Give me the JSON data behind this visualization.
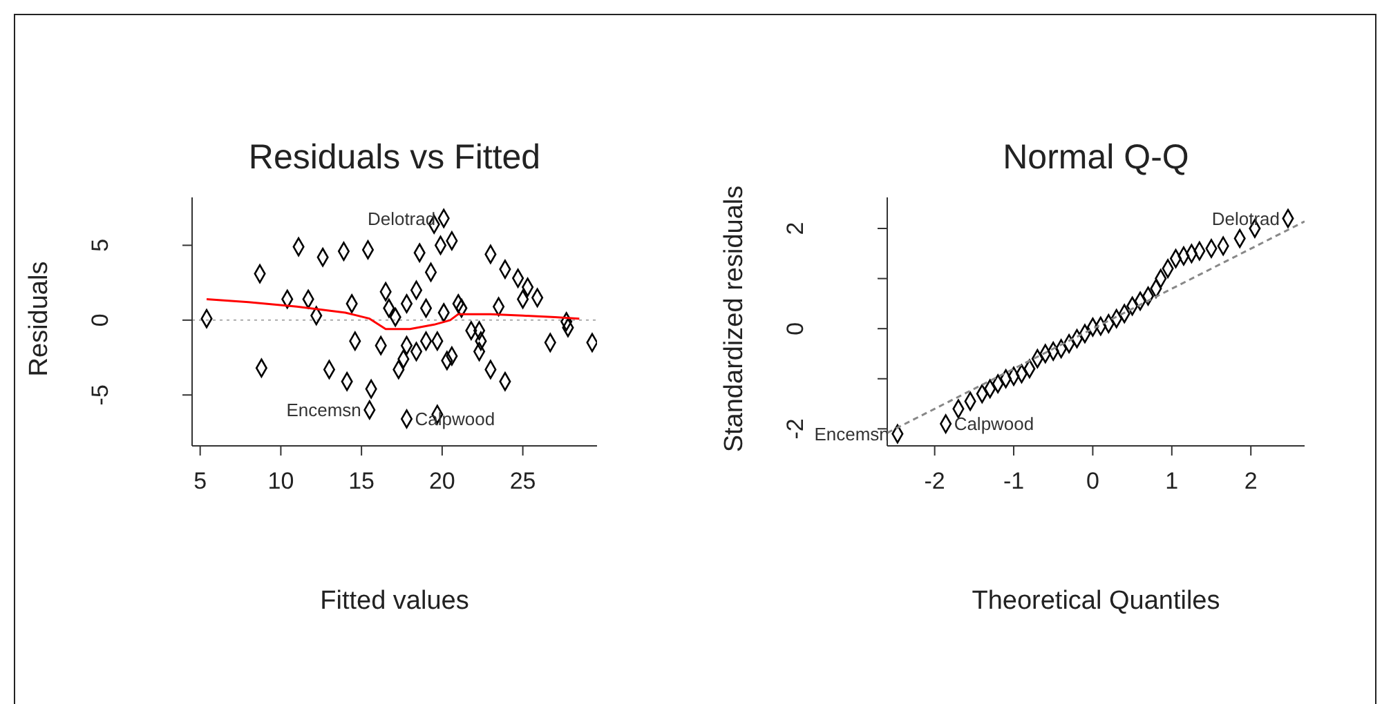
{
  "chart_data": [
    {
      "type": "scatter",
      "title": "Residuals vs Fitted",
      "xlabel": "Fitted values",
      "ylabel": "Residuals",
      "xlim": [
        4.5,
        29.6
      ],
      "ylim": [
        -8.4,
        8.2
      ],
      "xticks": [
        5,
        10,
        15,
        20,
        25
      ],
      "yticks": [
        -5,
        0,
        5
      ],
      "series": [
        {
          "marker": "diamond",
          "color": "#000000",
          "x": [
            5.4,
            8.7,
            8.8,
            11.1,
            10.4,
            11.7,
            12.6,
            12.2,
            13.9,
            15.4,
            13.0,
            14.1,
            14.4,
            14.6,
            15.6,
            15.5,
            16.5,
            16.2,
            17.1,
            17.8,
            17.3,
            17.8,
            20.1,
            19.5,
            20.6,
            19.9,
            18.6,
            19.3,
            18.4,
            19.0,
            20.1,
            21.2,
            21.0,
            23.0,
            23.9,
            24.7,
            25.3,
            25.9,
            25.0,
            23.5,
            22.3,
            21.8,
            22.4,
            22.3,
            27.8,
            27.7,
            26.7,
            29.3,
            23.0,
            23.9,
            20.6,
            20.3,
            19.7,
            19.0,
            18.4,
            17.6,
            17.8,
            19.7,
            16.7
          ],
          "values": [
            0.1,
            3.1,
            -3.2,
            4.9,
            1.4,
            1.4,
            4.2,
            0.3,
            4.6,
            4.7,
            -3.3,
            -4.1,
            1.1,
            -1.4,
            -4.6,
            -6.0,
            1.9,
            -1.7,
            0.2,
            1.1,
            -3.3,
            -6.6,
            6.8,
            6.4,
            5.3,
            5.0,
            4.5,
            3.2,
            2.0,
            0.8,
            0.5,
            0.8,
            1.1,
            4.4,
            3.4,
            2.8,
            2.2,
            1.5,
            1.4,
            0.9,
            -0.7,
            -0.7,
            -1.4,
            -2.1,
            -0.5,
            -0.1,
            -1.5,
            -1.5,
            -3.3,
            -4.1,
            -2.4,
            -2.7,
            -1.4,
            -1.4,
            -2.1,
            -2.6,
            -1.7,
            -6.3,
            0.8
          ]
        },
        {
          "type": "line",
          "color": "#ff0000",
          "x": [
            5.4,
            8,
            11,
            14,
            15.5,
            16.5,
            18,
            19.5,
            20.5,
            21,
            23,
            25,
            27,
            28.5
          ],
          "values": [
            1.4,
            1.2,
            0.9,
            0.5,
            0.1,
            -0.6,
            -0.6,
            -0.3,
            0,
            0.4,
            0.4,
            0.3,
            0.2,
            0.1
          ]
        }
      ],
      "ref_lines": [
        {
          "axis": "y",
          "value": 0,
          "color": "#aaaaaa",
          "line_style": "dotted"
        }
      ],
      "annotations": [
        {
          "text": "Delotrad",
          "x": 20.1,
          "y": 6.8
        },
        {
          "text": "Calpwood",
          "x": 17.8,
          "y": -6.6
        },
        {
          "text": "Encemsn",
          "x": 15.5,
          "y": -6.0
        }
      ]
    },
    {
      "type": "scatter",
      "title": "Normal Q-Q",
      "xlabel": "Theoretical Quantiles",
      "ylabel": "Standardized residuals",
      "xlim": [
        -2.6,
        2.68
      ],
      "ylim": [
        -2.34,
        2.62
      ],
      "xticks": [
        -2,
        -1,
        0,
        1,
        2
      ],
      "yticks": [
        -2,
        {
          "value": -1,
          "label": null
        },
        0,
        {
          "value": 1,
          "label": null
        },
        2
      ],
      "series": [
        {
          "marker": "diamond",
          "color": "#000000",
          "x": [
            -2.47,
            -1.86,
            -1.7,
            -1.55,
            -1.4,
            -1.3,
            -1.2,
            -1.1,
            -1.0,
            -0.9,
            -0.8,
            -0.7,
            -0.6,
            -0.5,
            -0.4,
            -0.3,
            -0.2,
            -0.1,
            0,
            0.1,
            0.2,
            0.3,
            0.4,
            0.5,
            0.6,
            0.7,
            0.8,
            0.86,
            0.95,
            1.05,
            1.15,
            1.25,
            1.35,
            1.5,
            1.65,
            1.86,
            2.05,
            2.47
          ],
          "values": [
            -2.1,
            -1.9,
            -1.6,
            -1.45,
            -1.3,
            -1.2,
            -1.1,
            -1.0,
            -0.95,
            -0.9,
            -0.8,
            -0.6,
            -0.5,
            -0.45,
            -0.4,
            -0.3,
            -0.2,
            -0.1,
            0.03,
            0.05,
            0.1,
            0.2,
            0.3,
            0.45,
            0.55,
            0.65,
            0.8,
            1.0,
            1.2,
            1.4,
            1.45,
            1.5,
            1.55,
            1.6,
            1.65,
            1.8,
            2.0,
            2.2
          ]
        },
        {
          "type": "line",
          "color": "#888888",
          "line_style": "dashed",
          "x": [
            -2.6,
            2.68
          ],
          "values": [
            -2.08,
            2.14
          ]
        }
      ],
      "annotations": [
        {
          "text": "Delotrad",
          "x": 2.47,
          "y": 2.2
        },
        {
          "text": "Calpwood",
          "x": -1.86,
          "y": -1.9
        },
        {
          "text": "Encemsn",
          "x": -2.47,
          "y": -2.1
        }
      ]
    }
  ]
}
